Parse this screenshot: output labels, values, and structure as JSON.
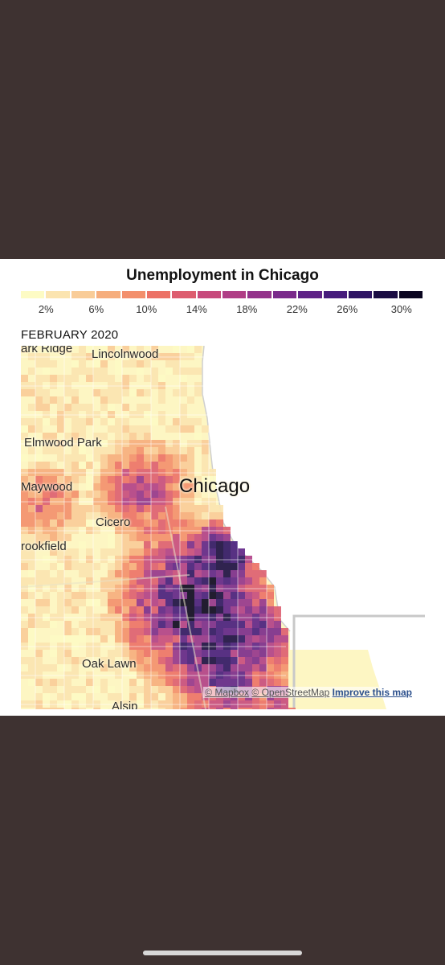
{
  "card": {
    "title": "Unemployment in Chicago",
    "period_label": "FEBRUARY 2020"
  },
  "legend": {
    "colors": [
      "#fdfbc4",
      "#fbe4b0",
      "#f9cc98",
      "#f6ad7c",
      "#f38f6c",
      "#ec7166",
      "#dd5d6f",
      "#c74a7c",
      "#b03e86",
      "#94338b",
      "#7a2a8b",
      "#5f2287",
      "#461c7c",
      "#2e1464",
      "#1a0c43",
      "#0a0520"
    ],
    "ticks": [
      "2%",
      "6%",
      "10%",
      "14%",
      "18%",
      "22%",
      "26%",
      "30%"
    ]
  },
  "map": {
    "places": {
      "park_ridge": "ark Ridge",
      "lincolnwood": "Lincolnwood",
      "elmwood_park": "Elmwood Park",
      "maywood": "Maywood",
      "chicago": "Chicago",
      "cicero": "Cicero",
      "brookfield": "rookfield",
      "oak_lawn": "Oak Lawn",
      "alsip": "Alsip"
    },
    "attribution": {
      "mapbox": "© Mapbox",
      "osm": "© OpenStreetMap",
      "improve": "Improve this map"
    }
  }
}
